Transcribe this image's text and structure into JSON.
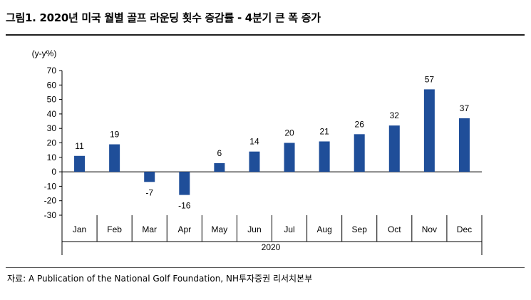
{
  "header": {
    "title": "그림1. 2020년 미국 월별 골프 라운딩 횟수 증감률 - 4분기 큰 폭 증가"
  },
  "footer": {
    "source": "자료: A Publication of the National Golf Foundation, NH투자증권 리서치본부"
  },
  "colors": {
    "bar": "#1f4e99",
    "axis": "#000000",
    "text": "#000000"
  },
  "chart_data": {
    "type": "bar",
    "title": "",
    "ylabel": "(y-y%)",
    "xlabel": "",
    "group_label": "2020",
    "categories": [
      "Jan",
      "Feb",
      "Mar",
      "Apr",
      "May",
      "Jun",
      "Jul",
      "Aug",
      "Sep",
      "Oct",
      "Nov",
      "Dec"
    ],
    "values": [
      11,
      19,
      -7,
      -16,
      6,
      14,
      20,
      21,
      26,
      32,
      57,
      37
    ],
    "data_labels": [
      "11",
      "19",
      "-7",
      "-16",
      "6",
      "14",
      "20",
      "21",
      "26",
      "32",
      "57",
      "37"
    ],
    "ylim": [
      -30,
      70
    ],
    "yticks": [
      -30,
      -20,
      -10,
      0,
      10,
      20,
      30,
      40,
      50,
      60,
      70
    ],
    "grid": false,
    "legend": "none"
  }
}
